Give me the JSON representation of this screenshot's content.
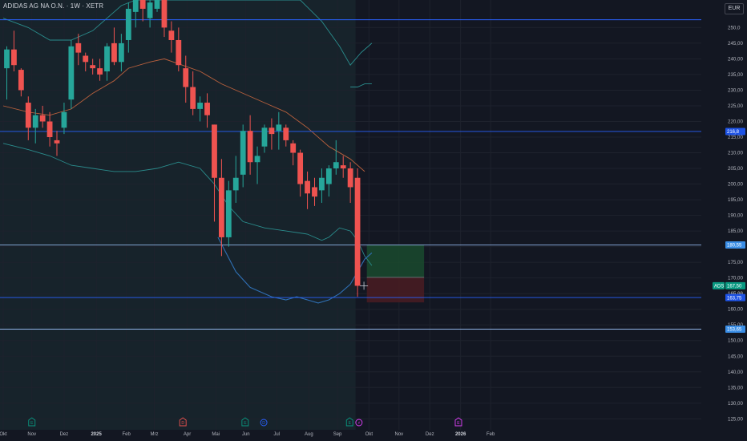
{
  "header": {
    "title": "ADIDAS AG NA O.N. · 1W · XETR",
    "currency": "EUR"
  },
  "colors": {
    "background": "#131722",
    "candle_up": "#26a69a",
    "candle_down": "#ef5350",
    "grid": "#1e222d",
    "band_line": "#2a8c8c",
    "ma_line": "#b8603d",
    "hline_blue": "#2962ff",
    "hline_light": "#90b4e8",
    "price_label": "#1e53e5"
  },
  "chart_data": {
    "type": "candlestick",
    "title": "ADIDAS AG NA O.N. · 1W · XETR",
    "currency": "EUR",
    "ylim": [
      121.5,
      256.5
    ],
    "y_ticks": [
      125,
      130,
      135,
      140,
      145,
      150,
      155,
      160,
      165,
      170,
      175,
      180,
      185,
      190,
      195,
      200,
      205,
      210,
      215,
      220,
      225,
      230,
      235,
      240,
      245,
      250
    ],
    "y_tick_labels": [
      "125,00",
      "130,00",
      "135,00",
      "140,00",
      "145,00",
      "150,00",
      "155,00",
      "160,00",
      "165,00",
      "170,00",
      "175,00",
      "180,00",
      "185,00",
      "190,00",
      "195,00",
      "200,00",
      "205,00",
      "210,00",
      "215,00",
      "220,00",
      "225,00",
      "230,00",
      "235,00",
      "240,00",
      "245,00",
      "250,0"
    ],
    "x_ticks": [
      {
        "label": "Okt",
        "i": -0.5,
        "bold": false
      },
      {
        "label": "Nov",
        "i": 3.5,
        "bold": false
      },
      {
        "label": "Dez",
        "i": 8,
        "bold": false
      },
      {
        "label": "2025",
        "i": 12.5,
        "bold": true
      },
      {
        "label": "Feb",
        "i": 16.7,
        "bold": false
      },
      {
        "label": "Mrz",
        "i": 20.6,
        "bold": false
      },
      {
        "label": "Apr",
        "i": 25.2,
        "bold": false
      },
      {
        "label": "Mai",
        "i": 29.2,
        "bold": false
      },
      {
        "label": "Jun",
        "i": 33.4,
        "bold": false
      },
      {
        "label": "Jul",
        "i": 37.7,
        "bold": false
      },
      {
        "label": "Aug",
        "i": 42.2,
        "bold": false
      },
      {
        "label": "Sep",
        "i": 46.2,
        "bold": false
      },
      {
        "label": "Okt",
        "i": 50.6,
        "bold": false
      },
      {
        "label": "Nov",
        "i": 54.8,
        "bold": false
      },
      {
        "label": "Dez",
        "i": 59.1,
        "bold": false
      },
      {
        "label": "2026",
        "i": 63.4,
        "bold": true
      },
      {
        "label": "Feb",
        "i": 67.6,
        "bold": false
      }
    ],
    "candles": [
      {
        "o": 237,
        "h": 244,
        "l": 227,
        "c": 243
      },
      {
        "o": 243,
        "h": 249,
        "l": 236,
        "c": 238
      },
      {
        "o": 236.5,
        "h": 237,
        "l": 228,
        "c": 230
      },
      {
        "o": 226,
        "h": 228,
        "l": 214,
        "c": 218
      },
      {
        "o": 218,
        "h": 224,
        "l": 213,
        "c": 222
      },
      {
        "o": 222,
        "h": 225,
        "l": 218,
        "c": 220
      },
      {
        "o": 220,
        "h": 223,
        "l": 212,
        "c": 215
      },
      {
        "o": 214,
        "h": 217,
        "l": 209,
        "c": 213
      },
      {
        "o": 218,
        "h": 226,
        "l": 216,
        "c": 223
      },
      {
        "o": 227,
        "h": 246,
        "l": 224,
        "c": 244
      },
      {
        "o": 245,
        "h": 248,
        "l": 238,
        "c": 242
      },
      {
        "o": 241,
        "h": 242,
        "l": 236,
        "c": 239
      },
      {
        "o": 238,
        "h": 240,
        "l": 235,
        "c": 237
      },
      {
        "o": 237,
        "h": 240,
        "l": 233,
        "c": 235
      },
      {
        "o": 236,
        "h": 245,
        "l": 233,
        "c": 244
      },
      {
        "o": 245,
        "h": 250,
        "l": 238,
        "c": 239
      },
      {
        "o": 239,
        "h": 248,
        "l": 236,
        "c": 245
      },
      {
        "o": 246,
        "h": 258,
        "l": 242,
        "c": 256
      },
      {
        "o": 255,
        "h": 262,
        "l": 250,
        "c": 260
      },
      {
        "o": 260,
        "h": 262,
        "l": 252,
        "c": 256
      },
      {
        "o": 253,
        "h": 260,
        "l": 250,
        "c": 258
      },
      {
        "o": 256,
        "h": 265,
        "l": 255,
        "c": 262
      },
      {
        "o": 262,
        "h": 265,
        "l": 247,
        "c": 250
      },
      {
        "o": 249,
        "h": 252,
        "l": 242,
        "c": 246
      },
      {
        "o": 246,
        "h": 250,
        "l": 236,
        "c": 238
      },
      {
        "o": 237,
        "h": 241,
        "l": 226,
        "c": 231
      },
      {
        "o": 231,
        "h": 236,
        "l": 222,
        "c": 224
      },
      {
        "o": 224,
        "h": 228,
        "l": 220,
        "c": 226
      },
      {
        "o": 226,
        "h": 229,
        "l": 218,
        "c": 222
      },
      {
        "o": 219,
        "h": 219,
        "l": 188,
        "c": 202
      },
      {
        "o": 202,
        "h": 208,
        "l": 177,
        "c": 183
      },
      {
        "o": 183,
        "h": 201,
        "l": 180,
        "c": 198
      },
      {
        "o": 198,
        "h": 209,
        "l": 194,
        "c": 202
      },
      {
        "o": 203,
        "h": 219,
        "l": 199,
        "c": 217
      },
      {
        "o": 217,
        "h": 222,
        "l": 203,
        "c": 207
      },
      {
        "o": 207,
        "h": 212,
        "l": 200,
        "c": 209
      },
      {
        "o": 212,
        "h": 219,
        "l": 210,
        "c": 218
      },
      {
        "o": 218,
        "h": 221,
        "l": 211,
        "c": 216
      },
      {
        "o": 217,
        "h": 223,
        "l": 211,
        "c": 219
      },
      {
        "o": 218,
        "h": 219,
        "l": 212,
        "c": 214
      },
      {
        "o": 213,
        "h": 214,
        "l": 206,
        "c": 210
      },
      {
        "o": 210,
        "h": 211,
        "l": 196,
        "c": 200
      },
      {
        "o": 201,
        "h": 204,
        "l": 192,
        "c": 197
      },
      {
        "o": 199,
        "h": 202,
        "l": 193,
        "c": 196
      },
      {
        "o": 198,
        "h": 205,
        "l": 194,
        "c": 202
      },
      {
        "o": 200,
        "h": 206,
        "l": 196,
        "c": 205
      },
      {
        "o": 205,
        "h": 214,
        "l": 203,
        "c": 207
      },
      {
        "o": 206,
        "h": 209,
        "l": 202,
        "c": 205
      },
      {
        "o": 205,
        "h": 207,
        "l": 194,
        "c": 199
      },
      {
        "o": 202,
        "h": 205,
        "l": 164,
        "c": 167.5
      }
    ],
    "moving_average": [
      {
        "i": -0.5,
        "v": 225
      },
      {
        "i": 3,
        "v": 223
      },
      {
        "i": 6,
        "v": 222
      },
      {
        "i": 9,
        "v": 224
      },
      {
        "i": 12,
        "v": 229
      },
      {
        "i": 15,
        "v": 233
      },
      {
        "i": 17,
        "v": 237
      },
      {
        "i": 20,
        "v": 239
      },
      {
        "i": 22,
        "v": 240
      },
      {
        "i": 24.5,
        "v": 238
      },
      {
        "i": 27,
        "v": 236
      },
      {
        "i": 30,
        "v": 232
      },
      {
        "i": 33,
        "v": 229
      },
      {
        "i": 36,
        "v": 226
      },
      {
        "i": 39,
        "v": 223
      },
      {
        "i": 42,
        "v": 218
      },
      {
        "i": 45,
        "v": 212
      },
      {
        "i": 48,
        "v": 208
      },
      {
        "i": 50,
        "v": 204
      }
    ],
    "upper_band": [
      {
        "i": -0.5,
        "v": 253
      },
      {
        "i": 3,
        "v": 250
      },
      {
        "i": 6,
        "v": 246
      },
      {
        "i": 9,
        "v": 246
      },
      {
        "i": 12,
        "v": 249
      },
      {
        "i": 14,
        "v": 253
      },
      {
        "i": 16,
        "v": 257
      },
      {
        "i": 18,
        "v": 259
      },
      {
        "i": 25,
        "v": 259
      },
      {
        "i": 33,
        "v": 259
      },
      {
        "i": 41,
        "v": 259
      },
      {
        "i": 44,
        "v": 252
      },
      {
        "i": 46.5,
        "v": 244
      },
      {
        "i": 48,
        "v": 238
      },
      {
        "i": 49.5,
        "v": 242
      },
      {
        "i": 51,
        "v": 245
      }
    ],
    "lower_band": [
      {
        "i": -0.5,
        "v": 213
      },
      {
        "i": 3,
        "v": 211
      },
      {
        "i": 6,
        "v": 209
      },
      {
        "i": 9,
        "v": 206
      },
      {
        "i": 12,
        "v": 205
      },
      {
        "i": 15,
        "v": 204
      },
      {
        "i": 18,
        "v": 204
      },
      {
        "i": 21,
        "v": 205
      },
      {
        "i": 24,
        "v": 207
      },
      {
        "i": 27,
        "v": 205
      },
      {
        "i": 29,
        "v": 200
      },
      {
        "i": 31,
        "v": 193
      },
      {
        "i": 33,
        "v": 188
      },
      {
        "i": 36,
        "v": 186
      },
      {
        "i": 39,
        "v": 185
      },
      {
        "i": 42,
        "v": 184
      },
      {
        "i": 44,
        "v": 182
      },
      {
        "i": 45,
        "v": 183
      },
      {
        "i": 46.5,
        "v": 186
      },
      {
        "i": 48,
        "v": 185
      },
      {
        "i": 49,
        "v": 182
      },
      {
        "i": 50,
        "v": 177
      },
      {
        "i": 51,
        "v": 174
      }
    ],
    "inner_upper_band": [
      {
        "i": 48,
        "v": 231
      },
      {
        "i": 49,
        "v": 231
      },
      {
        "i": 50,
        "v": 232
      },
      {
        "i": 51,
        "v": 232
      }
    ],
    "inner_lower_band": [
      {
        "i": 29.5,
        "v": 183
      },
      {
        "i": 32,
        "v": 172
      },
      {
        "i": 34,
        "v": 167
      },
      {
        "i": 37,
        "v": 164
      },
      {
        "i": 39,
        "v": 163
      },
      {
        "i": 40.5,
        "v": 164
      },
      {
        "i": 42,
        "v": 163
      },
      {
        "i": 43.5,
        "v": 162
      },
      {
        "i": 45,
        "v": 163
      },
      {
        "i": 46.5,
        "v": 165
      },
      {
        "i": 48,
        "v": 168
      },
      {
        "i": 49,
        "v": 172
      },
      {
        "i": 50,
        "v": 176
      },
      {
        "i": 51,
        "v": 178
      }
    ],
    "horizontal_lines": [
      {
        "price": 252.5,
        "color": "#2962ff"
      },
      {
        "price": 216.8,
        "color": "#2962ff"
      },
      {
        "price": 180.55,
        "color": "#90b4e8"
      },
      {
        "price": 163.75,
        "color": "#2962ff"
      },
      {
        "price": 153.65,
        "color": "#90b4e8"
      }
    ],
    "position": {
      "entry": 170.2,
      "target": 180.6,
      "stop": 162.2,
      "from_i": 50.3,
      "to_i": 58.3
    },
    "price_labels": [
      {
        "text": "216,8",
        "price": 216.8,
        "bg": "#1e53e5"
      },
      {
        "text": "180,55",
        "price": 180.55,
        "bg": "#3a8ee6"
      },
      {
        "text": "167,50",
        "price": 167.5,
        "bg": "#089981",
        "ticker": "ADS"
      },
      {
        "text": "163,75",
        "price": 163.75,
        "bg": "#1e53e5",
        "extra": "165,00"
      },
      {
        "text": "153,65",
        "price": 153.65,
        "bg": "#3a8ee6"
      }
    ],
    "events": [
      {
        "kind": "earnings",
        "i": 3.5,
        "letter": "E",
        "color": "#089981"
      },
      {
        "kind": "dividend",
        "i": 24.6,
        "letter": "D",
        "color": "#ef5350"
      },
      {
        "kind": "earnings",
        "i": 33.3,
        "letter": "E",
        "color": "#089981"
      },
      {
        "kind": "dividend",
        "i": 35.9,
        "letter": "D",
        "color": "#2962ff"
      },
      {
        "kind": "earnings",
        "i": 47.9,
        "letter": "E",
        "color": "#089981"
      },
      {
        "kind": "split",
        "i": 49.2,
        "letter": "⚡",
        "color": "#e040fb"
      },
      {
        "kind": "earnings",
        "i": 63.1,
        "letter": "E",
        "color": "#e040fb"
      }
    ]
  }
}
